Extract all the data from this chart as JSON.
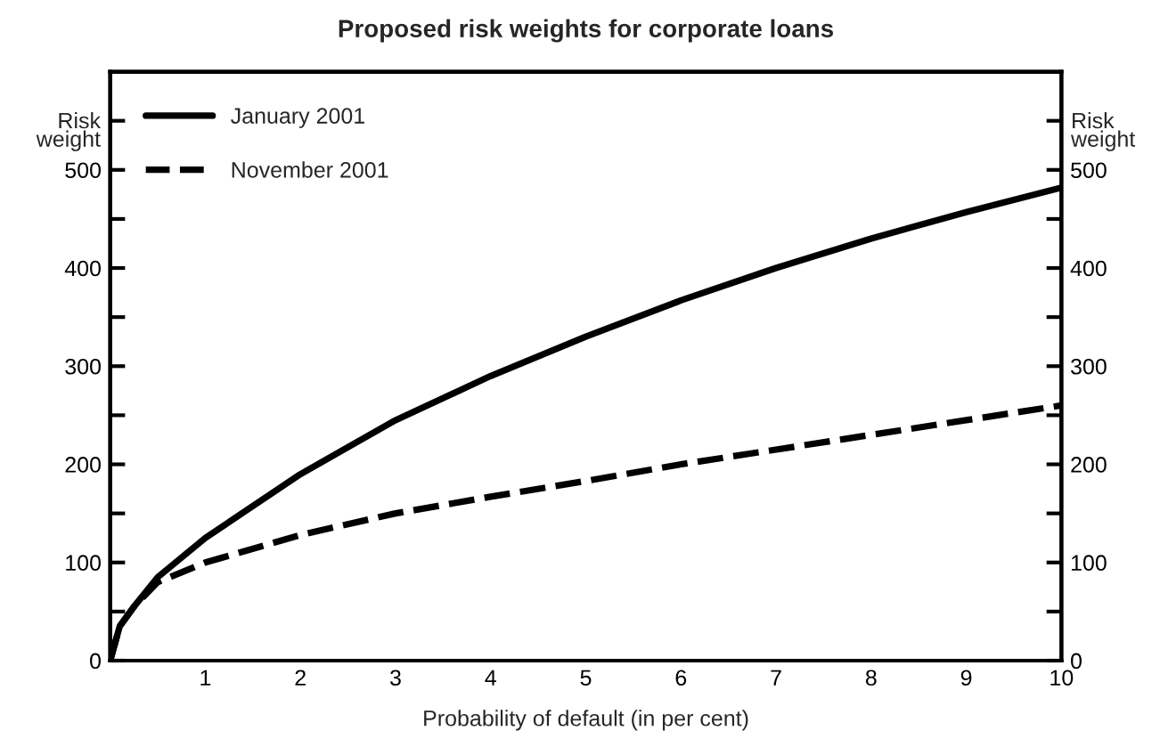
{
  "chart_data": {
    "type": "line",
    "title": "Proposed risk weights for corporate loans",
    "xlabel": "Probability of default (in per cent)",
    "ylabel": "Risk\nweight",
    "y2label": "Risk\nweight",
    "xlim": [
      0,
      10
    ],
    "xticks": [
      {
        "value": 0,
        "label": null
      },
      1,
      2,
      3,
      4,
      5,
      6,
      7,
      8,
      9,
      10
    ],
    "ylim": [
      0,
      600
    ],
    "yticks": [
      0,
      {
        "value": 50,
        "label": null
      },
      100,
      {
        "value": 150,
        "label": null
      },
      200,
      {
        "value": 250,
        "label": null
      },
      300,
      {
        "value": 350,
        "label": null
      },
      400,
      {
        "value": 450,
        "label": null
      },
      500,
      {
        "value": 550,
        "label": null
      }
    ],
    "y2lim": [
      0,
      600
    ],
    "y2ticks": [
      0,
      {
        "value": 50,
        "label": null
      },
      100,
      {
        "value": 150,
        "label": null
      },
      200,
      {
        "value": 250,
        "label": null
      },
      300,
      {
        "value": 350,
        "label": null
      },
      400,
      {
        "value": 450,
        "label": null
      },
      500,
      {
        "value": 550,
        "label": null
      }
    ],
    "grid": false,
    "legend": "top left",
    "marker": "none",
    "series": [
      {
        "name": "January 2001",
        "color": "#000000",
        "line_style": "solid",
        "x": [
          0,
          0.1,
          0.25,
          0.5,
          1,
          2,
          3,
          4,
          5,
          6,
          7,
          8,
          9,
          10
        ],
        "values": [
          0,
          35,
          55,
          85,
          125,
          190,
          245,
          290,
          330,
          367,
          400,
          430,
          457,
          482
        ]
      },
      {
        "name": "November 2001",
        "color": "#000000",
        "line_style": "dashed",
        "x": [
          0,
          0.1,
          0.25,
          0.5,
          1,
          2,
          3,
          4,
          5,
          6,
          7,
          8,
          9,
          10
        ],
        "values": [
          0,
          35,
          55,
          80,
          100,
          128,
          150,
          167,
          183,
          200,
          215,
          230,
          245,
          260
        ]
      }
    ]
  }
}
